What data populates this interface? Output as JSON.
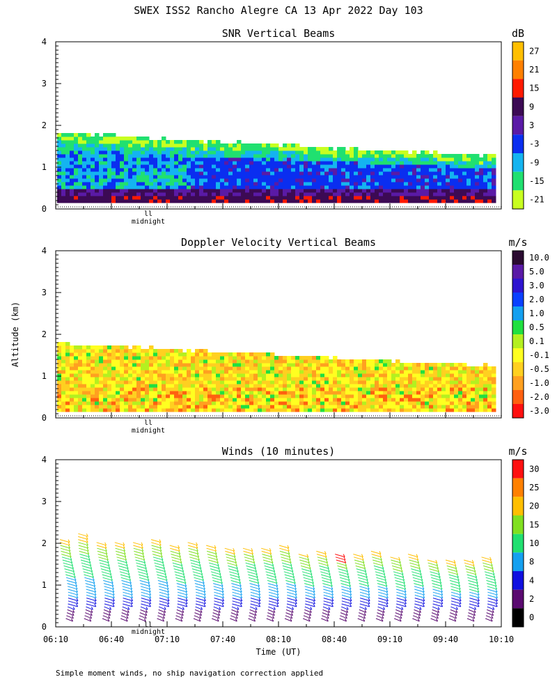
{
  "header": {
    "title": "SWEX ISS2 Rancho Alegre CA  13 Apr 2022 Day 103",
    "ylabel": "Altitude (km)",
    "xlabel": "Time (UT)",
    "footnote": "Simple moment winds, no ship navigation correction applied",
    "midnight_label": "midnight"
  },
  "chart_data": [
    {
      "type": "heatmap",
      "title": "SNR Vertical Beams",
      "unit": "dB",
      "ylim": [
        0,
        4
      ],
      "yticks": [
        "0",
        "1",
        "2",
        "3",
        "4"
      ],
      "colorbar_labels": [
        "27",
        "21",
        "15",
        "9",
        "3",
        "-3",
        "-9",
        "-15",
        "-21"
      ],
      "colors": [
        "#ffbf00",
        "#ff8000",
        "#ff1a00",
        "#3c0a54",
        "#5a1aa6",
        "#0a2ef0",
        "#14b4f0",
        "#20e070",
        "#c8ff20"
      ],
      "top_height_km_start": 1.78,
      "top_height_km_end": 1.22
    },
    {
      "type": "heatmap",
      "title": "Doppler Velocity Vertical Beams",
      "unit": "m/s",
      "ylim": [
        0,
        4
      ],
      "yticks": [
        "0",
        "1",
        "2",
        "3",
        "4"
      ],
      "colorbar_labels": [
        "10.0",
        "5.0",
        "3.0",
        "2.0",
        "1.0",
        "0.5",
        "0.1",
        "-0.1",
        "-0.5",
        "-1.0",
        "-2.0",
        "-3.0"
      ],
      "colors": [
        "#2a0a30",
        "#5a1aa6",
        "#2e14d0",
        "#0a40ff",
        "#14a0f0",
        "#20e040",
        "#b4f020",
        "#ffff20",
        "#ffd020",
        "#ffa020",
        "#ff6010",
        "#ff1010"
      ],
      "top_height_km_start": 1.75,
      "top_height_km_end": 1.2
    },
    {
      "type": "scatter",
      "title": "Winds (10 minutes)",
      "unit": "m/s",
      "ylim": [
        0,
        4
      ],
      "yticks": [
        "0",
        "1",
        "2",
        "3",
        "4"
      ],
      "colorbar_labels": [
        "30",
        "25",
        "20",
        "15",
        "10",
        "8",
        "4",
        "2",
        "0"
      ],
      "colors": [
        "#ff1010",
        "#ff8000",
        "#ffbf00",
        "#80e020",
        "#20e070",
        "#14a0f0",
        "#1010e0",
        "#5a0a70",
        "#000000"
      ],
      "x_ticklabels": [
        "06:10",
        "06:40",
        "07:10",
        "07:40",
        "08:10",
        "08:40",
        "09:10",
        "09:40",
        "10:10"
      ],
      "profile_count": 24
    }
  ]
}
